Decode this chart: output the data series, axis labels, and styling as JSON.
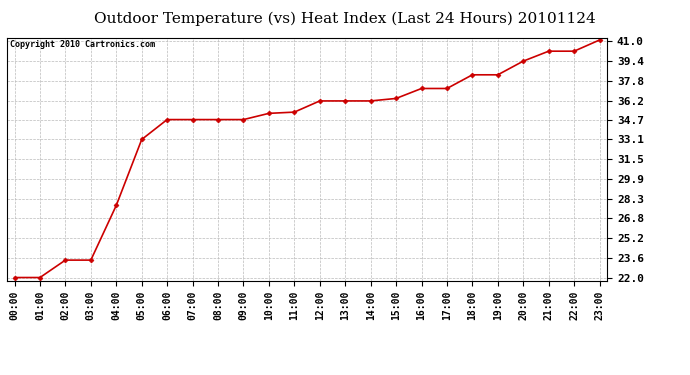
{
  "title": "Outdoor Temperature (vs) Heat Index (Last 24 Hours) 20101124",
  "copyright": "Copyright 2010 Cartronics.com",
  "x_labels": [
    "00:00",
    "01:00",
    "02:00",
    "03:00",
    "04:00",
    "05:00",
    "06:00",
    "07:00",
    "08:00",
    "09:00",
    "10:00",
    "11:00",
    "12:00",
    "13:00",
    "14:00",
    "15:00",
    "16:00",
    "17:00",
    "18:00",
    "19:00",
    "20:00",
    "21:00",
    "22:00",
    "23:00"
  ],
  "y_values": [
    22.0,
    22.0,
    23.4,
    23.4,
    27.8,
    33.1,
    34.7,
    34.7,
    34.7,
    34.7,
    35.2,
    35.3,
    36.2,
    36.2,
    36.2,
    36.4,
    37.2,
    37.2,
    38.3,
    38.3,
    39.4,
    40.2,
    40.2,
    41.1
  ],
  "line_color": "#cc0000",
  "marker": "D",
  "marker_size": 2.5,
  "line_width": 1.2,
  "y_min": 22.0,
  "y_max": 41.0,
  "y_ticks": [
    22.0,
    23.6,
    25.2,
    26.8,
    28.3,
    29.9,
    31.5,
    33.1,
    34.7,
    36.2,
    37.8,
    39.4,
    41.0
  ],
  "background_color": "#ffffff",
  "plot_bg_color": "#ffffff",
  "grid_color": "#bbbbbb",
  "title_fontsize": 11,
  "copyright_fontsize": 6,
  "tick_fontsize": 7,
  "ytick_fontsize": 8
}
